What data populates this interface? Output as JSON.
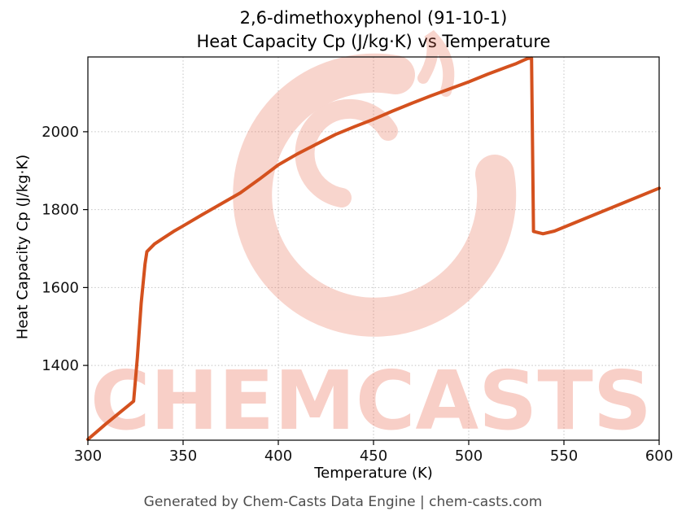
{
  "watermark": {
    "text": "CHEMCASTS",
    "color": "#e96a50",
    "text_opacity": 0.32,
    "logo_opacity": 0.28
  },
  "footer": {
    "credit": "Generated by Chem-Casts Data Engine | chem-casts.com"
  },
  "chart_data": {
    "type": "line",
    "title_line1": "2,6-dimethoxyphenol (91-10-1)",
    "title_line2": "Heat Capacity Cp (J/kg·K) vs Temperature",
    "xlabel": "Temperature (K)",
    "ylabel": "Heat Capacity Cp (J/kg·K)",
    "xlim": [
      300,
      600
    ],
    "ylim": [
      1208,
      2192
    ],
    "xticks": [
      300,
      350,
      400,
      450,
      500,
      550,
      600
    ],
    "yticks": [
      1400,
      1600,
      1800,
      2000
    ],
    "grid": true,
    "grid_style": "dotted",
    "legend": "none",
    "line_color": "#d4511e",
    "series": [
      {
        "name": "Heat Capacity Cp",
        "points": [
          [
            300,
            1210
          ],
          [
            310,
            1252
          ],
          [
            321,
            1296
          ],
          [
            324,
            1308
          ],
          [
            326,
            1420
          ],
          [
            328,
            1560
          ],
          [
            330,
            1660
          ],
          [
            331,
            1692
          ],
          [
            335,
            1712
          ],
          [
            340,
            1728
          ],
          [
            345,
            1744
          ],
          [
            350,
            1758
          ],
          [
            360,
            1787
          ],
          [
            370,
            1815
          ],
          [
            380,
            1843
          ],
          [
            390,
            1878
          ],
          [
            400,
            1915
          ],
          [
            410,
            1943
          ],
          [
            420,
            1968
          ],
          [
            430,
            1993
          ],
          [
            440,
            2013
          ],
          [
            450,
            2032
          ],
          [
            460,
            2053
          ],
          [
            470,
            2073
          ],
          [
            480,
            2092
          ],
          [
            490,
            2110
          ],
          [
            500,
            2128
          ],
          [
            510,
            2148
          ],
          [
            520,
            2166
          ],
          [
            525,
            2175
          ],
          [
            529,
            2184
          ],
          [
            531,
            2188
          ],
          [
            533,
            2189
          ],
          [
            534,
            1744
          ],
          [
            539,
            1738
          ],
          [
            545,
            1745
          ],
          [
            560,
            1775
          ],
          [
            580,
            1815
          ],
          [
            600,
            1855
          ]
        ]
      }
    ]
  }
}
